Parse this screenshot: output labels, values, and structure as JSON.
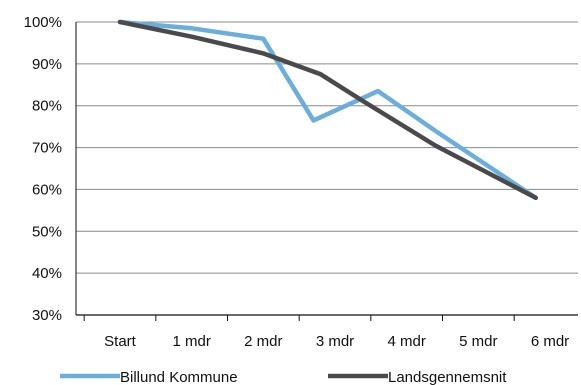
{
  "chart_data": {
    "type": "line",
    "title": "",
    "xlabel": "",
    "ylabel": "",
    "categories": [
      "Start",
      "1 mdr",
      "2 mdr",
      "3 mdr",
      "4 mdr",
      "5 mdr",
      "6 mdr"
    ],
    "ylim": [
      30,
      100
    ],
    "yticks": [
      "30%",
      "40%",
      "50%",
      "60%",
      "70%",
      "80%",
      "90%",
      "100%"
    ],
    "grid": true,
    "legend_position": "bottom",
    "series": [
      {
        "name": "Billund Kommune",
        "color": "#6aaedb",
        "points": [
          {
            "x": 0,
            "y": 100
          },
          {
            "x": 1,
            "y": 98.5
          },
          {
            "x": 2,
            "y": 96
          },
          {
            "x": 2.7,
            "y": 76.5
          },
          {
            "x": 3.6,
            "y": 83.5
          },
          {
            "x": 4.4,
            "y": 74
          },
          {
            "x": 5.8,
            "y": 58
          }
        ]
      },
      {
        "name": "Landsgennemsnit",
        "color": "#4a4a4c",
        "points": [
          {
            "x": 0,
            "y": 100
          },
          {
            "x": 1,
            "y": 96.5
          },
          {
            "x": 2,
            "y": 92.5
          },
          {
            "x": 2.8,
            "y": 87.5
          },
          {
            "x": 3.4,
            "y": 81
          },
          {
            "x": 4.4,
            "y": 70.5
          },
          {
            "x": 5.8,
            "y": 58
          }
        ]
      }
    ]
  }
}
